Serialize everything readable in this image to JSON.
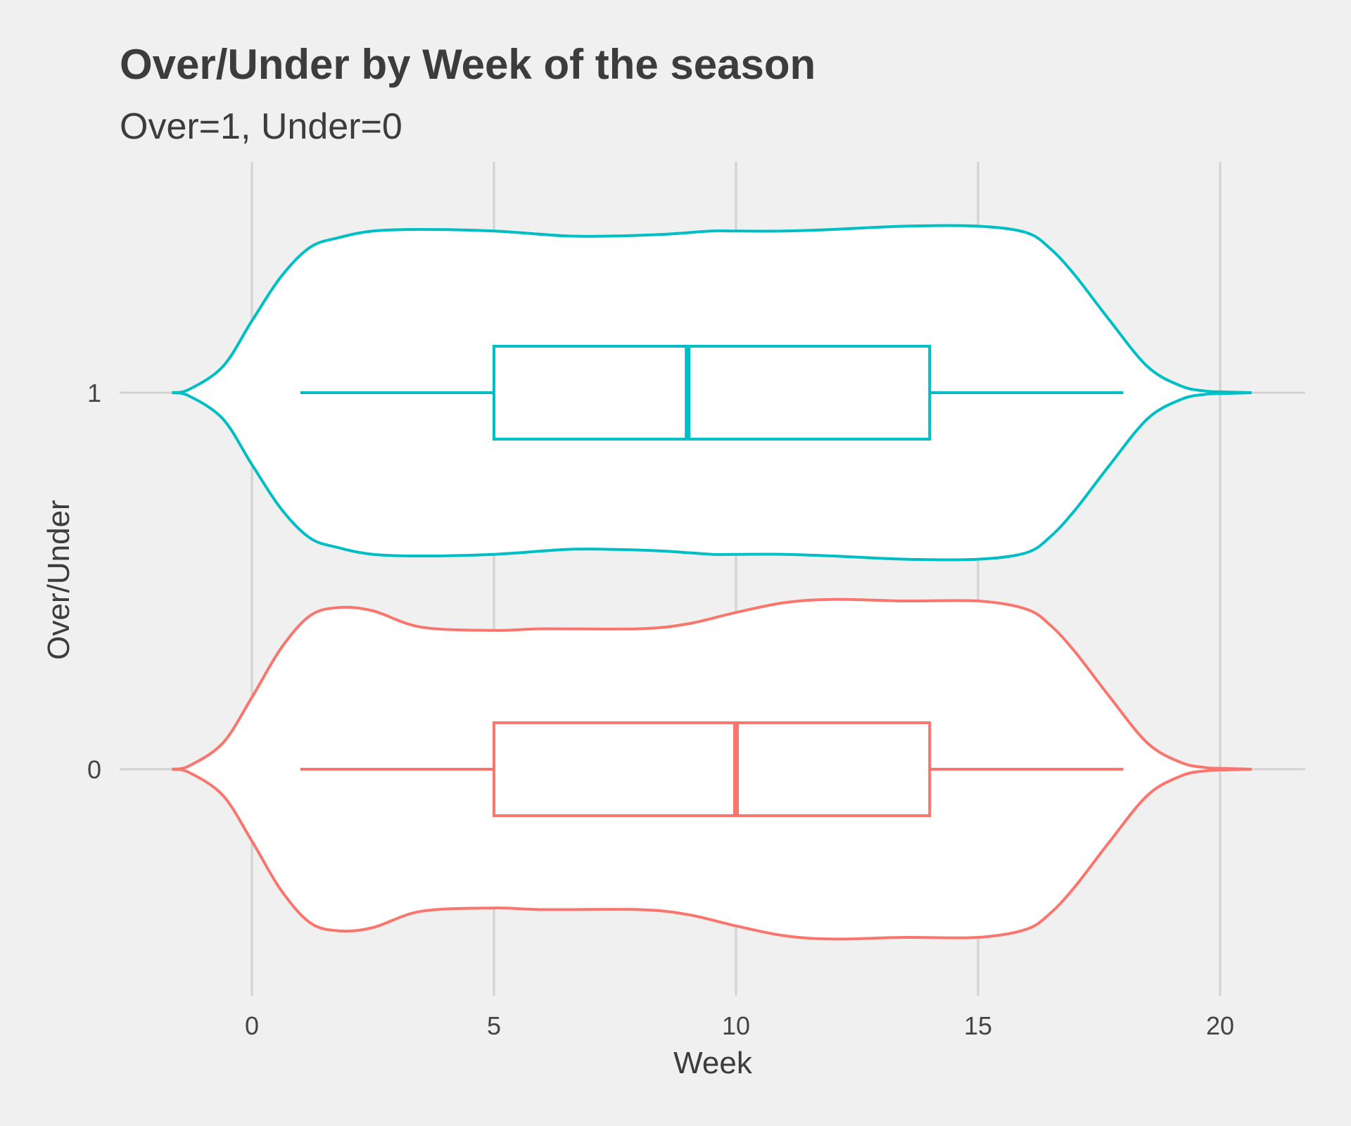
{
  "chart_data": {
    "type": "violin",
    "title": "Over/Under by Week of the season",
    "subtitle": "Over=1, Under=0",
    "xlabel": "Week",
    "ylabel": "Over/Under",
    "xlim": [
      -2.7,
      21.8
    ],
    "x_ticks": [
      0,
      5,
      10,
      15,
      20
    ],
    "y_ticks": [
      1,
      0
    ],
    "grid": true,
    "legend": "none",
    "background": "#f0f0f0",
    "violin_fill": "#ffffff",
    "series": [
      {
        "category": "1",
        "color": "#00bfc4",
        "density_extent": [
          -1.65,
          20.65
        ],
        "violin_x": [
          -1.65,
          -1.3,
          -0.6,
          0,
          0.6,
          1.2,
          1.8,
          2.5,
          3.5,
          5.0,
          6.5,
          7.5,
          8.5,
          9.5,
          10.0,
          11.0,
          12.0,
          13.5,
          15.0,
          16.0,
          16.5,
          17.0,
          17.7,
          18.5,
          19.2,
          19.7,
          20.0,
          20.4,
          20.65
        ],
        "violin_width": [
          0.0,
          0.02,
          0.16,
          0.44,
          0.71,
          0.89,
          0.95,
          0.99,
          1.0,
          0.99,
          0.96,
          0.96,
          0.97,
          0.99,
          0.99,
          0.99,
          1.0,
          1.02,
          1.02,
          0.98,
          0.88,
          0.72,
          0.45,
          0.16,
          0.04,
          0.01,
          0.005,
          0.002,
          0.0
        ],
        "box": {
          "whisker_low": 1,
          "q1": 5,
          "median": 9,
          "q3": 14,
          "whisker_high": 18
        }
      },
      {
        "category": "0",
        "color": "#f8766d",
        "density_extent": [
          -1.65,
          20.65
        ],
        "violin_x": [
          -1.65,
          -1.3,
          -0.6,
          0,
          0.6,
          1.2,
          1.8,
          2.5,
          3.5,
          5.0,
          6.0,
          8.0,
          9.0,
          10.0,
          11.0,
          12.0,
          13.5,
          15.0,
          16.0,
          16.5,
          17.0,
          17.7,
          18.5,
          19.2,
          19.7,
          20.0,
          20.4,
          20.65
        ],
        "violin_width": [
          0.0,
          0.02,
          0.16,
          0.44,
          0.74,
          0.94,
          0.99,
          0.97,
          0.87,
          0.85,
          0.86,
          0.86,
          0.89,
          0.96,
          1.02,
          1.04,
          1.03,
          1.03,
          0.98,
          0.88,
          0.72,
          0.45,
          0.16,
          0.04,
          0.01,
          0.005,
          0.002,
          0.0
        ],
        "box": {
          "whisker_low": 1,
          "q1": 5,
          "median": 10,
          "q3": 14,
          "whisker_high": 18
        }
      }
    ]
  }
}
